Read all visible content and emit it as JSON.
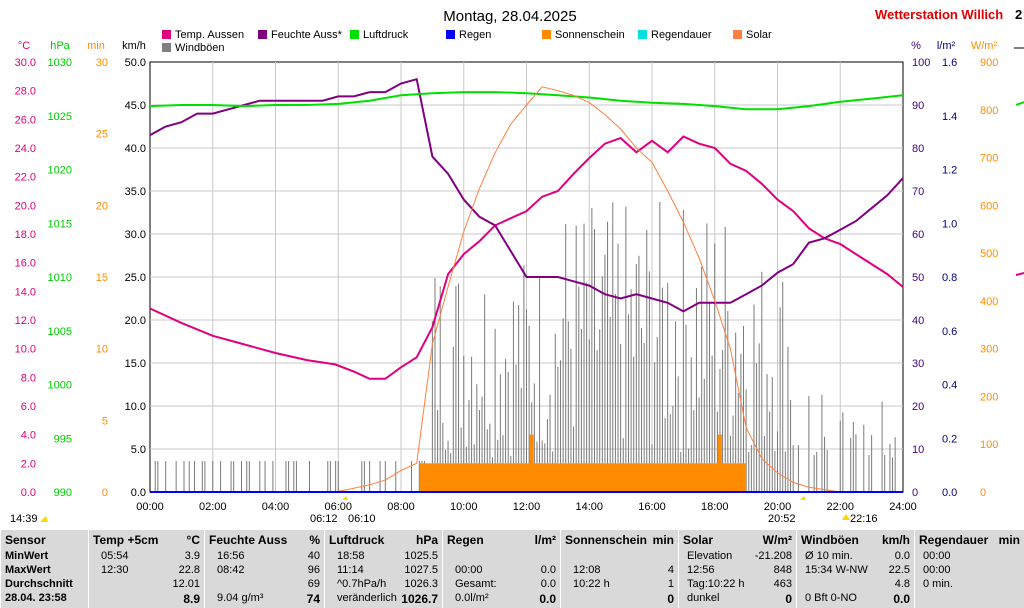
{
  "chart_data": {
    "type": "line",
    "title": "Montag, 28.04.2025",
    "station": "Wetterstation Willich",
    "station_suffix": "2",
    "x_ticks": [
      "00:00",
      "02:00",
      "04:00",
      "06:00",
      "08:00",
      "10:00",
      "12:00",
      "14:00",
      "16:00",
      "18:00",
      "20:00",
      "22:00",
      "24:00"
    ],
    "axes": {
      "temp": {
        "label": "°C",
        "range": [
          0,
          30
        ],
        "ticks": [
          "0.0",
          "2.0",
          "4.0",
          "6.0",
          "8.0",
          "10.0",
          "12.0",
          "14.0",
          "16.0",
          "18.0",
          "20.0",
          "22.0",
          "24.0",
          "26.0",
          "28.0",
          "30.0"
        ],
        "color": "#e0007f"
      },
      "pressure": {
        "label": "hPa",
        "range": [
          990,
          1030
        ],
        "ticks": [
          "990",
          "995",
          "1000",
          "1005",
          "1010",
          "1015",
          "1020",
          "1025",
          "1030"
        ],
        "color": "#00cc00"
      },
      "sunmin": {
        "label": "min",
        "range": [
          0,
          30
        ],
        "ticks": [
          "0",
          "5",
          "10",
          "15",
          "20",
          "25",
          "30"
        ],
        "color": "#ff8c00"
      },
      "wind": {
        "label": "km/h",
        "range": [
          0,
          50
        ],
        "ticks": [
          "0.0",
          "5.0",
          "10.0",
          "15.0",
          "20.0",
          "25.0",
          "30.0",
          "35.0",
          "40.0",
          "45.0",
          "50.0"
        ],
        "color": "#000000"
      },
      "humidity": {
        "label": "%",
        "range": [
          0,
          100
        ],
        "ticks": [
          "0",
          "10",
          "20",
          "30",
          "40",
          "50",
          "60",
          "70",
          "80",
          "90",
          "100"
        ],
        "color": "#400080"
      },
      "rain": {
        "label": "l/m²",
        "range": [
          0,
          1.6
        ],
        "ticks": [
          "0.0",
          "0.2",
          "0.4",
          "0.6",
          "0.8",
          "1.0",
          "1.2",
          "1.4",
          "1.6"
        ],
        "color": "#000080"
      },
      "solar": {
        "label": "W/m²",
        "range": [
          0,
          900
        ],
        "ticks": [
          "0",
          "100",
          "200",
          "300",
          "400",
          "500",
          "600",
          "700",
          "800",
          "900"
        ],
        "color": "#ff8c00"
      }
    },
    "legend": [
      {
        "name": "Temp. Aussen",
        "color": "#e0007f"
      },
      {
        "name": "Feuchte Auss*",
        "color": "#800080"
      },
      {
        "name": "Luftdruck",
        "color": "#00e000"
      },
      {
        "name": "Regen",
        "color": "#0000ff"
      },
      {
        "name": "Sonnenschein",
        "color": "#ff8c00"
      },
      {
        "name": "Regendauer",
        "color": "#00e0e0"
      },
      {
        "name": "Solar",
        "color": "#ff8040"
      },
      {
        "name": "Windböen",
        "color": "#808080"
      }
    ],
    "series": [
      {
        "name": "Temp. Aussen",
        "axis": "temp",
        "color": "#e0007f",
        "x": [
          0,
          1,
          2,
          3,
          4,
          5,
          5.9,
          6.5,
          7,
          7.5,
          8,
          8.5,
          9,
          9.5,
          10,
          10.5,
          11,
          11.5,
          12,
          12.5,
          13,
          13.5,
          14,
          14.5,
          15,
          15.5,
          16,
          16.5,
          17,
          17.5,
          18,
          18.5,
          19,
          19.5,
          20,
          20.5,
          21,
          21.5,
          22,
          22.5,
          23,
          23.5,
          24
        ],
        "y": [
          12.8,
          11.8,
          10.9,
          10.3,
          9.7,
          9.2,
          8.9,
          8.4,
          7.9,
          7.9,
          8.7,
          9.4,
          11.5,
          15.2,
          16.6,
          17.5,
          18.6,
          19.1,
          19.6,
          20.6,
          21.0,
          22.2,
          23.3,
          24.3,
          24.7,
          23.7,
          24.5,
          23.7,
          24.8,
          24.3,
          24.0,
          22.9,
          22.4,
          21.5,
          20.4,
          19.6,
          18.4,
          17.7,
          17.3,
          16.6,
          15.9,
          15.2,
          14.3
        ]
      },
      {
        "name": "Feuchte Auss*",
        "axis": "humidity",
        "color": "#800080",
        "x": [
          0,
          0.5,
          1,
          1.5,
          2,
          2.5,
          3,
          3.5,
          4,
          4.5,
          5,
          5.5,
          6,
          6.5,
          7,
          7.5,
          8,
          8.5,
          9,
          9.5,
          10,
          10.5,
          11,
          11.5,
          12,
          12.5,
          13,
          13.5,
          14,
          14.5,
          15,
          15.5,
          16,
          16.5,
          17,
          17.5,
          18,
          18.5,
          19,
          19.5,
          20,
          20.5,
          21,
          21.5,
          22,
          22.5,
          23,
          23.5,
          24
        ],
        "y": [
          83,
          85,
          86,
          88,
          88,
          89,
          90,
          91,
          91,
          91,
          91,
          91,
          92,
          92,
          93,
          93,
          95,
          96,
          78,
          74,
          68,
          64,
          62,
          56,
          50,
          50,
          50,
          49,
          48,
          46,
          45,
          46,
          45,
          44,
          42,
          44,
          44,
          44,
          46,
          48,
          51,
          53,
          58,
          59,
          61,
          63,
          66,
          69,
          73
        ]
      },
      {
        "name": "Luftdruck",
        "axis": "pressure",
        "color": "#00e000",
        "x": [
          0,
          1,
          2,
          3,
          4,
          5,
          6,
          7,
          8,
          9,
          10,
          11,
          12,
          13,
          14,
          15,
          16,
          17,
          18,
          19,
          20,
          21,
          22,
          23,
          24
        ],
        "y": [
          1025.9,
          1026.0,
          1026.0,
          1025.9,
          1026.0,
          1026.0,
          1026.1,
          1026.4,
          1026.9,
          1027.1,
          1027.2,
          1027.2,
          1027.1,
          1026.9,
          1026.7,
          1026.4,
          1026.2,
          1026.1,
          1025.9,
          1025.6,
          1025.6,
          1025.9,
          1026.3,
          1026.6,
          1026.9
        ]
      },
      {
        "name": "Solar",
        "axis": "solar",
        "color": "#ff8040",
        "x": [
          0,
          5.9,
          6.5,
          7,
          7.5,
          8,
          8.5,
          9,
          9.5,
          10,
          10.5,
          11,
          11.5,
          12,
          12.5,
          13,
          13.5,
          14,
          14.5,
          15,
          15.5,
          16,
          16.5,
          17,
          17.5,
          18,
          18.5,
          19,
          19.5,
          20,
          20.5,
          21,
          22,
          24
        ],
        "y": [
          0,
          0,
          8,
          15,
          25,
          45,
          60,
          310,
          430,
          545,
          635,
          710,
          770,
          810,
          848,
          840,
          830,
          815,
          790,
          760,
          720,
          690,
          630,
          565,
          490,
          400,
          300,
          135,
          70,
          40,
          20,
          10,
          0,
          0
        ]
      },
      {
        "name": "Regen",
        "axis": "rain",
        "color": "#0000ff",
        "x": [
          0,
          24
        ],
        "y": [
          0,
          0
        ]
      }
    ],
    "sunshine_bars": {
      "axis": "sunmin",
      "color": "#ff8c00",
      "start": 8.6,
      "end": 19.0,
      "level": 2,
      "spikes": [
        {
          "x": 12.1,
          "y": 4
        },
        {
          "x": 18.1,
          "y": 4
        }
      ]
    },
    "markers": {
      "left_time": "14:39",
      "sunrise": "06:12",
      "sunrise_b": "06:10",
      "sunset": "20:52",
      "sunset_b": "22:16"
    }
  },
  "table": {
    "sensor": {
      "title": "Sensor",
      "rows": [
        "MinWert",
        "MaxWert",
        "Durchschnitt",
        "28.04. 23:58"
      ]
    },
    "temp": {
      "title": "Temp +5cm",
      "unit": "°C",
      "rows": [
        [
          "05:54",
          "3.9"
        ],
        [
          "12:30",
          "22.8"
        ],
        [
          "",
          "12.01"
        ],
        [
          "",
          "8.9"
        ]
      ]
    },
    "humidity": {
      "title": "Feuchte Auss",
      "unit": "%",
      "rows": [
        [
          "16:56",
          "40"
        ],
        [
          "08:42",
          "96"
        ],
        [
          "",
          "69"
        ],
        [
          "9.04 g/m³",
          "74"
        ]
      ]
    },
    "pressure": {
      "title": "Luftdruck",
      "unit": "hPa",
      "rows": [
        [
          "18:58",
          "1025.5"
        ],
        [
          "11:14",
          "1027.5"
        ],
        [
          "^0.7hPa/h",
          "1026.3"
        ],
        [
          "veränderlich",
          "1026.7"
        ]
      ]
    },
    "rain": {
      "title": "Regen",
      "unit": "l/m²",
      "rows": [
        [
          "",
          ""
        ],
        [
          "00:00",
          "0.0"
        ],
        [
          "Gesamt:",
          "0.0"
        ],
        [
          "0.0l/m²",
          "0.0"
        ]
      ]
    },
    "sun": {
      "title": "Sonnenschein",
      "unit": "min",
      "rows": [
        [
          "",
          ""
        ],
        [
          "12:08",
          "4"
        ],
        [
          "10:22 h",
          "1"
        ],
        [
          "",
          "0"
        ]
      ]
    },
    "solar": {
      "title": "Solar",
      "unit": "W/m²",
      "rows": [
        [
          "Elevation",
          "-21.208"
        ],
        [
          "12:56",
          "848"
        ],
        [
          "Tag:10:22 h",
          "463"
        ],
        [
          "dunkel",
          "0"
        ]
      ]
    },
    "wind": {
      "title": "Windböen",
      "unit": "km/h",
      "rows": [
        [
          "Ø 10 min.",
          "0.0"
        ],
        [
          "15:34   W-NW",
          "22.5"
        ],
        [
          "",
          "4.8"
        ],
        [
          "0 Bft 0-NO",
          "0.0"
        ]
      ]
    },
    "raindur": {
      "title": "Regendauer",
      "unit": "min",
      "rows": [
        [
          "00:00",
          ""
        ],
        [
          "00:00",
          ""
        ],
        [
          "0 min.",
          ""
        ],
        [
          "",
          ""
        ]
      ]
    }
  }
}
